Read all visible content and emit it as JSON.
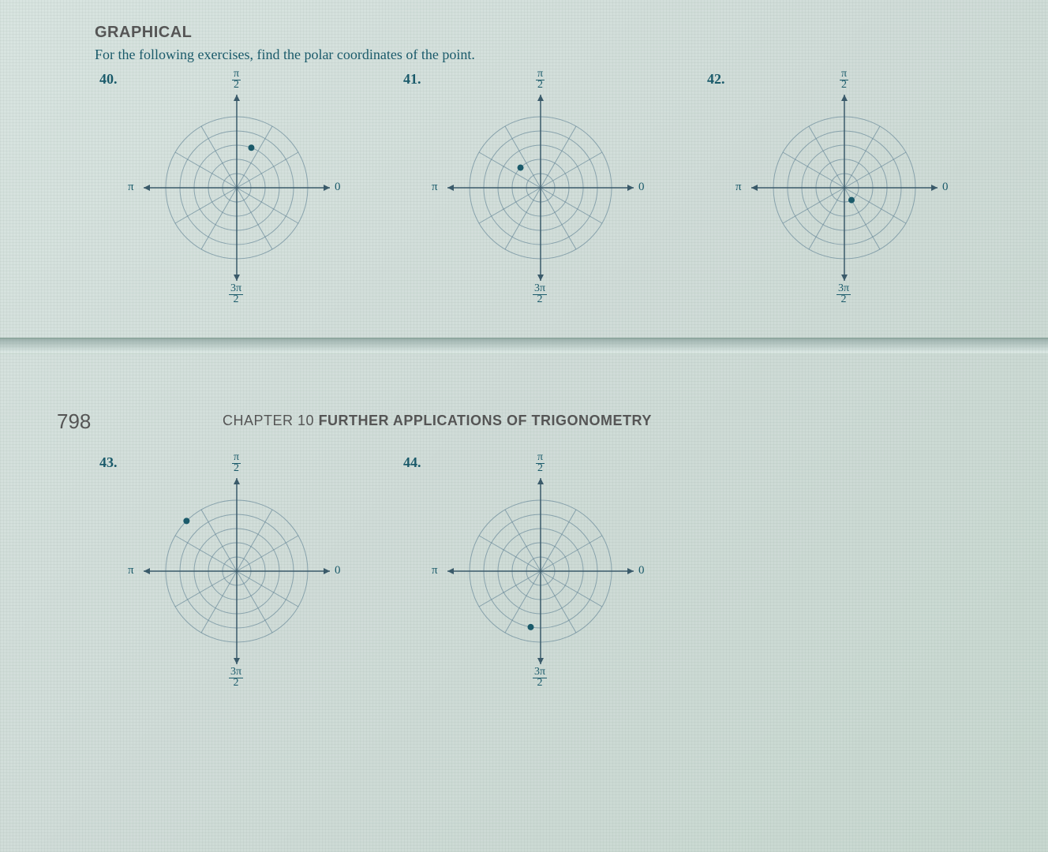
{
  "section_heading": "GRAPHICAL",
  "instruction": "For the following exercises, find the polar coordinates of the point.",
  "page_number": "798",
  "chapter_label": "CHAPTER 10",
  "chapter_name": "FURTHER APPLICATIONS OF TRIGONOMETRY",
  "axis_labels": {
    "top": "π/2",
    "right": "0",
    "left": "π",
    "bottom": "3π/2"
  },
  "polar_chart": {
    "type": "polar",
    "rings": 5,
    "ring_step": 18,
    "angles_deg": [
      0,
      30,
      60,
      90,
      120,
      150,
      180,
      210,
      240,
      270,
      300,
      330
    ],
    "stroke_color": "#6a8a9a",
    "axis_color": "#3a5a6a",
    "point_color": "#1a5a6a",
    "point_radius": 4,
    "background_color": "transparent"
  },
  "exercises": [
    {
      "id": "40.",
      "point_r": 3,
      "point_theta_deg": 70
    },
    {
      "id": "41.",
      "point_r": 2,
      "point_theta_deg": 135
    },
    {
      "id": "42.",
      "point_r": 1,
      "point_theta_deg": 300
    },
    {
      "id": "43.",
      "point_r": 5,
      "point_theta_deg": 135
    },
    {
      "id": "44.",
      "point_r": 4,
      "point_theta_deg": 260
    }
  ]
}
